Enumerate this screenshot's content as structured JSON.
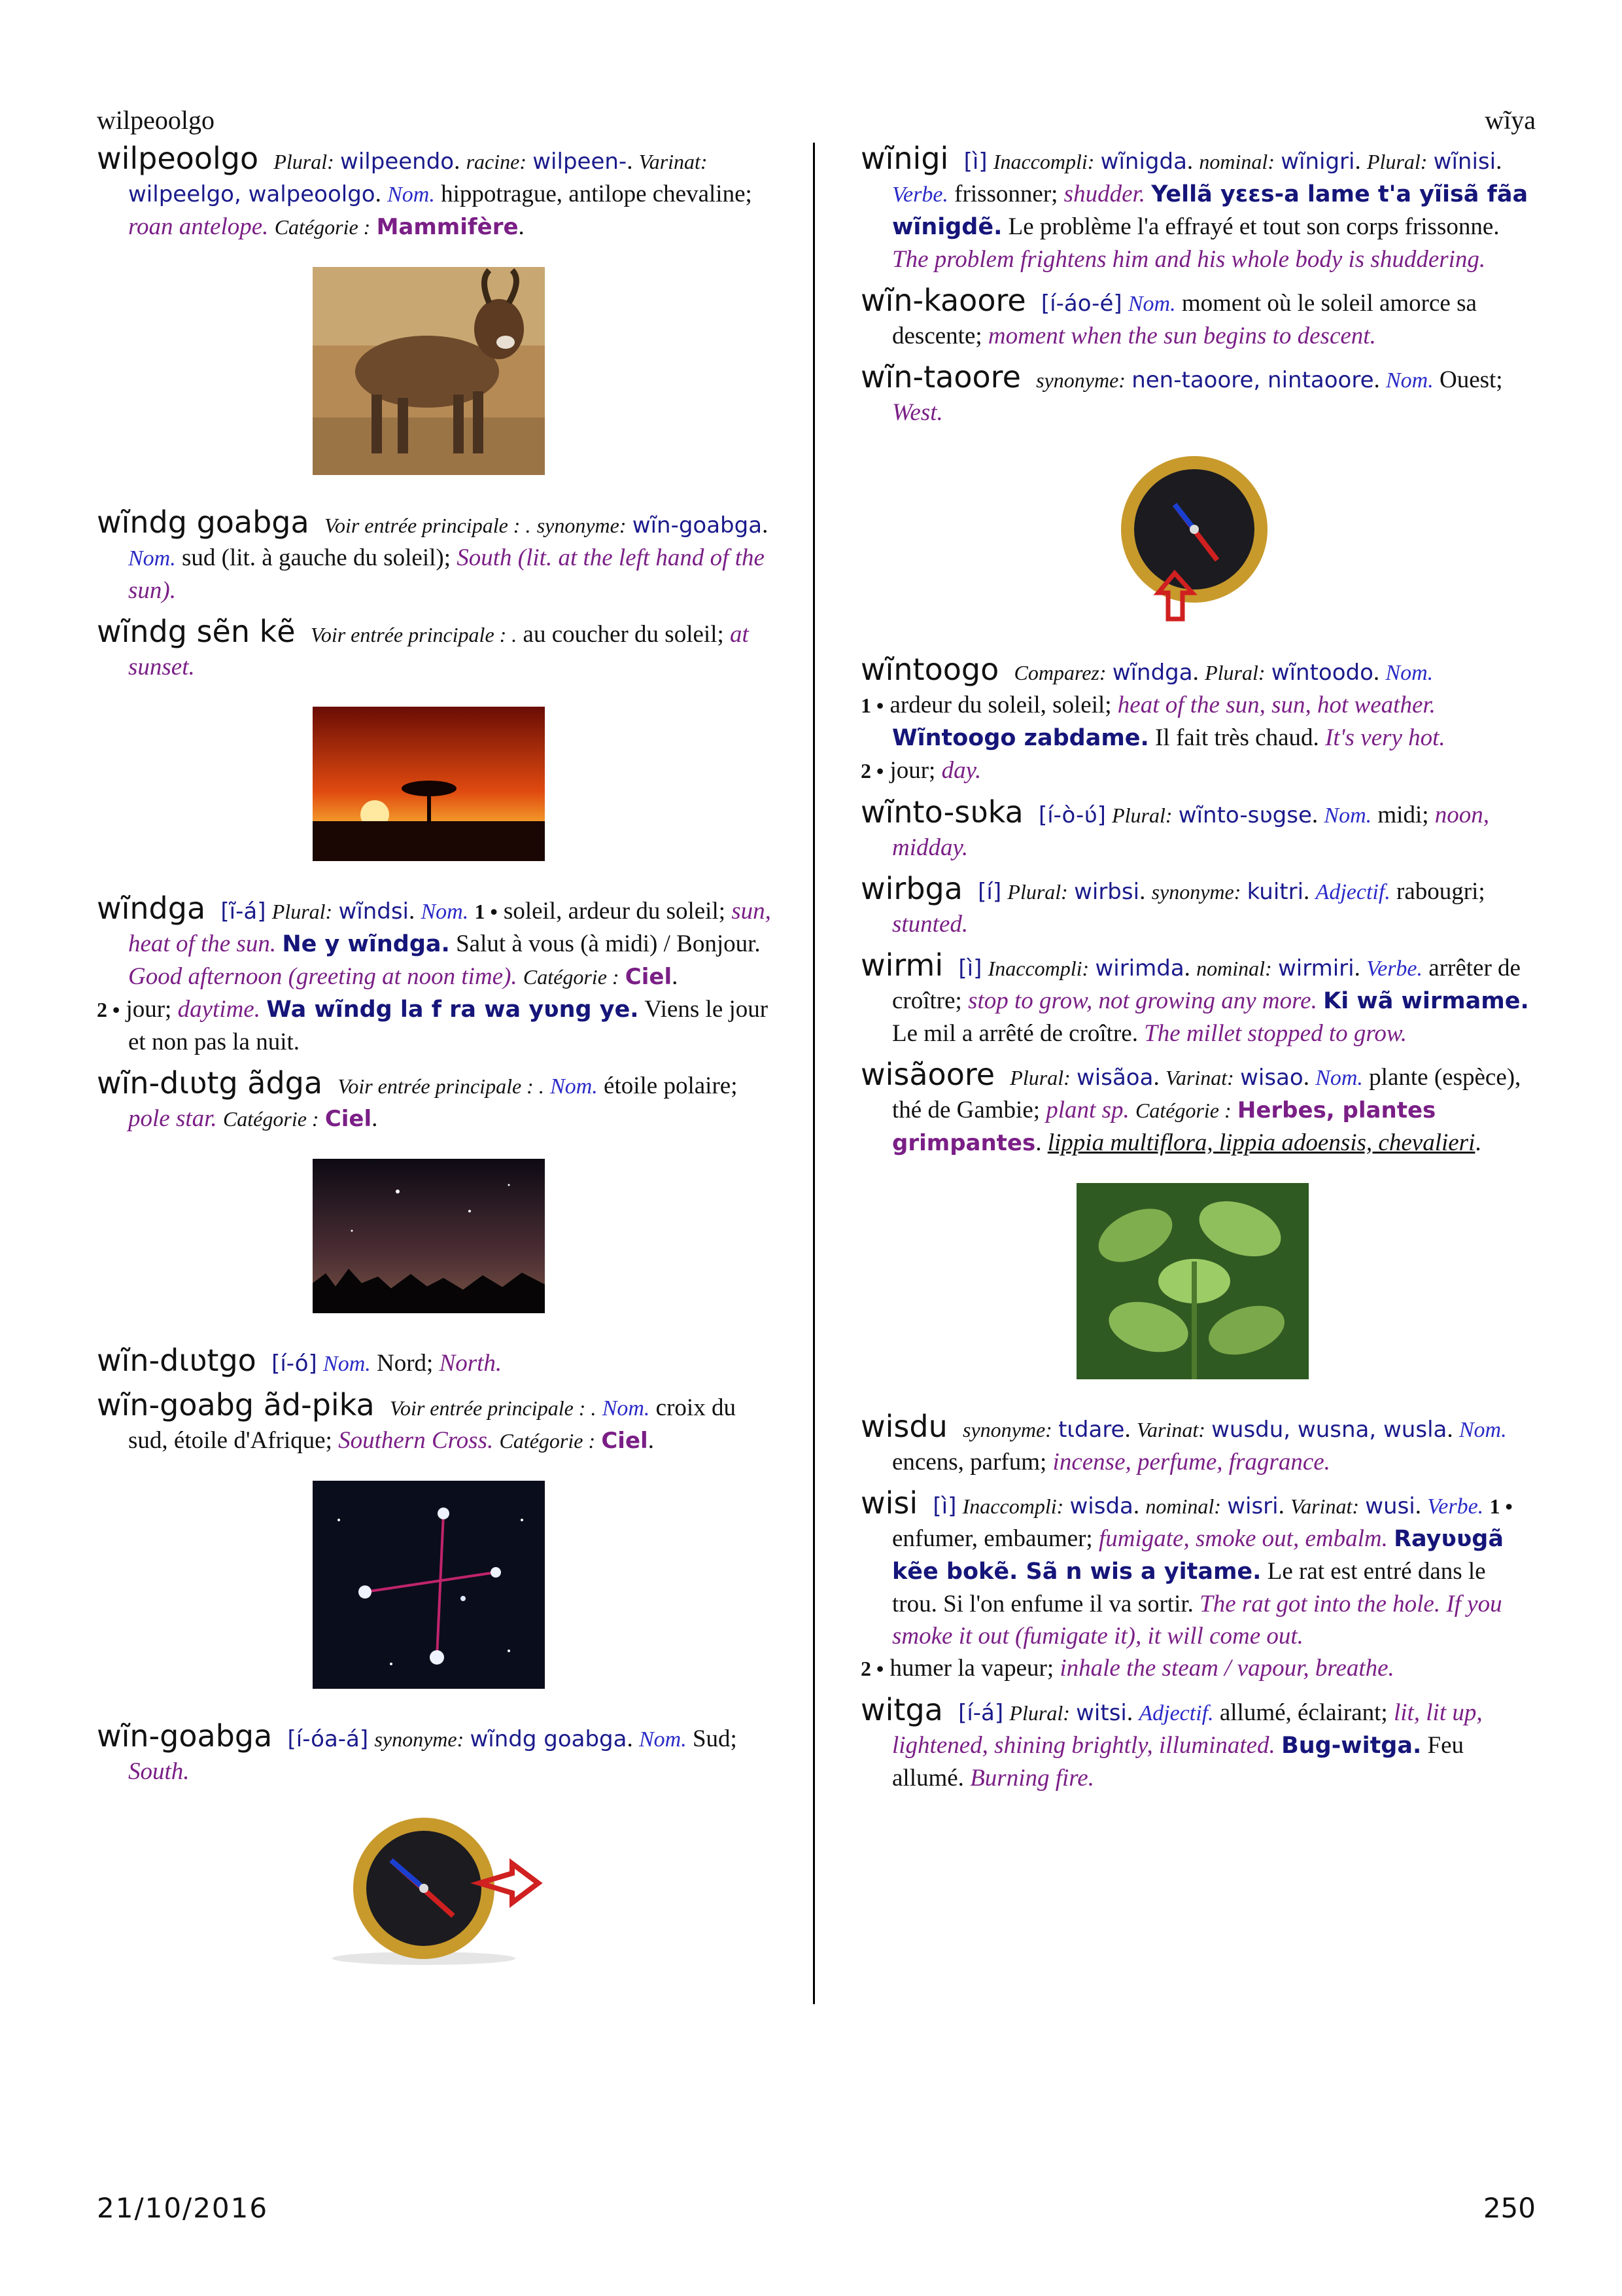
{
  "header": {
    "left": "wilpeoolgo",
    "right": "wĩya"
  },
  "footer": {
    "date": "21/10/2016",
    "page": "250"
  },
  "left": {
    "e1": {
      "hw": "wilpeoolgo",
      "l1": "Plural:",
      "v1": "wilpeendo",
      "l2": "racine:",
      "v2": "wilpeen-",
      "l3": "Varinat:",
      "v3": "wilpeelgo, walpeoolgo",
      "pos": "Nom.",
      "fr": "hippotrague, antilope chevaline;",
      "en": "roan antelope.",
      "catlbl": "Catégorie :",
      "cat": "Mammifère"
    },
    "e2": {
      "hw": "wĩndg goabga",
      "see": "Voir entrée principale : .",
      "l1": "synonyme:",
      "v1": "wĩn-goabga",
      "pos": "Nom.",
      "fr": "sud (lit. à gauche du soleil);",
      "en": "South (lit. at the left hand of the sun)."
    },
    "e3": {
      "hw": "wĩndg sẽn kẽ",
      "see": "Voir entrée principale : .",
      "fr": "au coucher du soleil;",
      "en": "at sunset."
    },
    "e4": {
      "hw": "wĩndga",
      "ph": "[ĩ-á]",
      "l1": "Plural:",
      "v1": "wĩndsi",
      "pos": "Nom.",
      "n1": "1 •",
      "fr1": "soleil, ardeur du soleil;",
      "en1": "sun, heat of the sun.",
      "ex1": "Ne y wĩndga.",
      "exfr1": "Salut à vous (à midi) / Bonjour.",
      "exen1": "Good afternoon (greeting at noon time).",
      "catlbl": "Catégorie :",
      "cat": "Ciel",
      "n2": "2 •",
      "fr2": "jour;",
      "en2": "daytime.",
      "ex2": "Wa wĩndg la f ra wa yʋng ye.",
      "exfr2": "Viens le jour et non pas la nuit."
    },
    "e5": {
      "hw": "wĩn-dɩʋtg ãdga",
      "see": "Voir entrée principale : .",
      "pos": "Nom.",
      "fr": "étoile polaire;",
      "en": "pole star.",
      "catlbl": "Catégorie :",
      "cat": "Ciel"
    },
    "e6": {
      "hw": "wĩn-dɩʋtgo",
      "ph": "[í-ó]",
      "pos": "Nom.",
      "fr": "Nord;",
      "en": "North."
    },
    "e7": {
      "hw": "wĩn-goabg ãd-pika",
      "see": "Voir entrée principale : .",
      "pos": "Nom.",
      "fr": "croix du sud, étoile d'Afrique;",
      "en": "Southern Cross.",
      "catlbl": "Catégorie :",
      "cat": "Ciel"
    },
    "e8": {
      "hw": "wĩn-goabga",
      "ph": "[í-óa-á]",
      "l1": "synonyme:",
      "v1": "wĩndg goabga",
      "pos": "Nom.",
      "fr": "Sud;",
      "en": "South."
    }
  },
  "right": {
    "e1": {
      "hw": "wĩnigi",
      "ph": "[ì]",
      "l1": "Inaccompli:",
      "v1": "wĩnigda",
      "l2": "nominal:",
      "v2": "wĩnigri",
      "l3": "Plural:",
      "v3": "wĩnisi",
      "pos": "Verbe.",
      "fr": "frissonner;",
      "en": "shudder.",
      "ex": "Yellã yɛɛs-a lame t'a yĩisã fãa wĩnigdẽ.",
      "exfr": "Le problème l'a effrayé et tout son corps frissonne.",
      "exen": "The problem frightens him and his whole body is shuddering."
    },
    "e2": {
      "hw": "wĩn-kaoore",
      "ph": "[í-áo-é]",
      "pos": "Nom.",
      "fr": "moment où le soleil amorce sa descente;",
      "en": "moment when the sun begins to descent."
    },
    "e3": {
      "hw": "wĩn-taoore",
      "l1": "synonyme:",
      "v1": "nen-taoore, nintaoore",
      "pos": "Nom.",
      "fr": "Ouest;",
      "en": "West."
    },
    "e4": {
      "hw": "wĩntoogo",
      "l1": "Comparez:",
      "v1": "wĩndga",
      "l2": "Plural:",
      "v2": "wĩntoodo",
      "pos": "Nom.",
      "n1": "1 •",
      "fr1": "ardeur du soleil, soleil;",
      "en1": "heat of the sun, sun, hot weather.",
      "ex1": "Wĩntoogo zabdame.",
      "exfr1": "Il fait très chaud.",
      "exen1": "It's very hot.",
      "n2": "2 •",
      "fr2": "jour;",
      "en2": "day."
    },
    "e5": {
      "hw": "wĩnto-sʋka",
      "ph": "[í-ò-ʋ́]",
      "l1": "Plural:",
      "v1": "wĩnto-sʋgse",
      "pos": "Nom.",
      "fr": "midi;",
      "en": "noon, midday."
    },
    "e6": {
      "hw": "wirbga",
      "ph": "[í]",
      "l1": "Plural:",
      "v1": "wirbsi",
      "l2": "synonyme:",
      "v2": "kuitri",
      "pos": "Adjectif.",
      "fr": "rabougri;",
      "en": "stunted."
    },
    "e7": {
      "hw": "wirmi",
      "ph": "[ì]",
      "l1": "Inaccompli:",
      "v1": "wirimda",
      "l2": "nominal:",
      "v2": "wirmiri",
      "pos": "Verbe.",
      "fr": "arrêter de croître;",
      "en": "stop to grow, not growing any more.",
      "ex": "Ki wã wirmame.",
      "exfr": "Le mil a arrêté de croître.",
      "exen": "The millet stopped to grow."
    },
    "e8": {
      "hw": "wisãoore",
      "l1": "Plural:",
      "v1": "wisãoa",
      "l2": "Varinat:",
      "v2": "wisao",
      "pos": "Nom.",
      "fr": "plante (espèce), thé de Gambie;",
      "en": "plant sp.",
      "catlbl": "Catégorie :",
      "cat": "Herbes, plantes grimpantes",
      "sci": "lippia multiflora, lippia adoensis, chevalieri"
    },
    "e9": {
      "hw": "wisdu",
      "l1": "synonyme:",
      "v1": "tɩdare",
      "l2": "Varinat:",
      "v2": "wusdu, wusna, wusla",
      "pos": "Nom.",
      "fr": "encens, parfum;",
      "en": "incense, perfume, fragrance."
    },
    "e10": {
      "hw": "wisi",
      "ph": "[ì]",
      "l1": "Inaccompli:",
      "v1": "wisda",
      "l2": "nominal:",
      "v2": "wisri",
      "l3": "Varinat:",
      "v3": "wusi",
      "pos": "Verbe.",
      "n1": "1 •",
      "fr1": "enfumer, embaumer;",
      "en1": "fumigate, smoke out, embalm.",
      "ex1": "Rayʋʋgã kẽe bokẽ. Sã n wis a yitame.",
      "exfr1": "Le rat est entré dans le trou. Si l'on enfume il va sortir.",
      "exen1": "The rat got into the hole. If you smoke it out (fumigate it), it will come out.",
      "n2": "2 •",
      "fr2": "humer la vapeur;",
      "en2": "inhale the steam / vapour, breathe."
    },
    "e11": {
      "hw": "witga",
      "ph": "[í-á]",
      "l1": "Plural:",
      "v1": "witsi",
      "pos": "Adjectif.",
      "fr": "allumé, éclairant;",
      "en": "lit, lit up, lightened, shining brightly, illuminated.",
      "ex": "Bug-witga.",
      "exfr": "Feu allumé.",
      "exen": "Burning fire."
    }
  }
}
